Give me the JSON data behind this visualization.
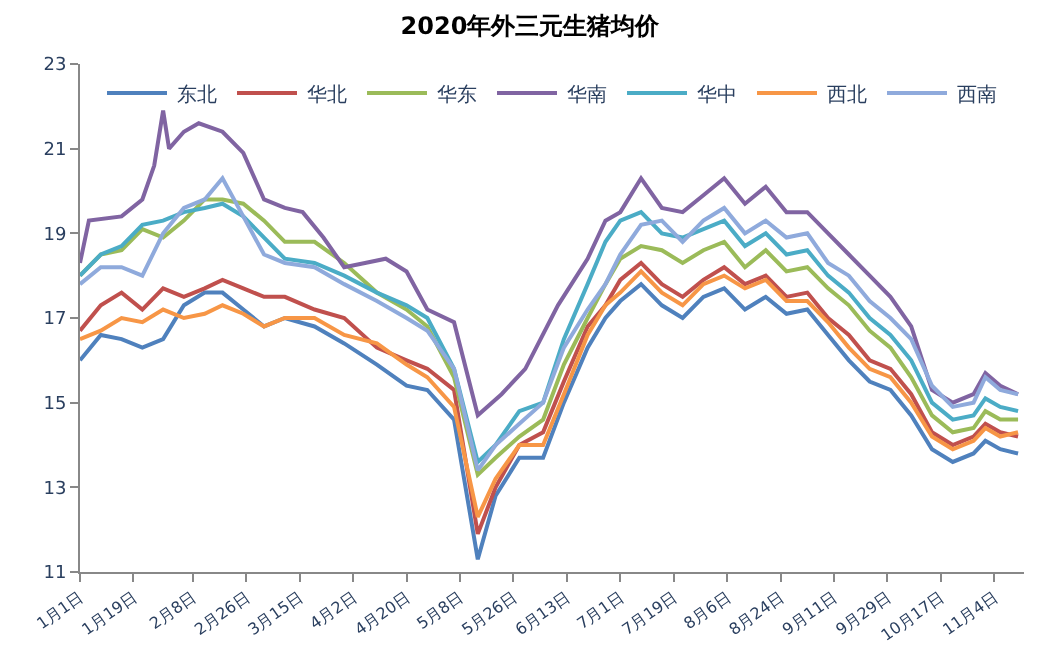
{
  "chart_data": {
    "type": "line",
    "title": "2020年外三元生猪均价",
    "x": [
      "--01-01",
      "--01-08",
      "--01-15",
      "--01-22",
      "--01-29",
      "--02-05",
      "--02-12",
      "--02-18",
      "--02-25",
      "--03-03",
      "--03-10",
      "--03-20",
      "--03-30",
      "--04-10",
      "--04-20",
      "--04-27",
      "--05-06",
      "--05-14",
      "--05-20",
      "--05-28",
      "--06-05",
      "--06-12",
      "--06-20",
      "--06-26",
      "--07-01",
      "--07-08",
      "--07-15",
      "--07-22",
      "--07-29",
      "--08-05",
      "--08-12",
      "--08-19",
      "--08-26",
      "--09-02",
      "--09-09",
      "--09-16",
      "--09-23",
      "--09-30",
      "--10-07",
      "--10-14",
      "--10-21",
      "--10-28",
      "--11-01",
      "--11-06",
      "--11-12"
    ],
    "series": [
      {
        "name": "东北",
        "color": "#4f81bd",
        "values": [
          16.0,
          16.6,
          16.5,
          16.3,
          16.5,
          17.3,
          17.6,
          17.6,
          17.2,
          16.8,
          17.0,
          16.8,
          16.4,
          15.9,
          15.4,
          15.3,
          14.6,
          11.3,
          12.8,
          13.7,
          13.7,
          15.0,
          16.3,
          17.0,
          17.4,
          17.8,
          17.3,
          17.0,
          17.5,
          17.7,
          17.2,
          17.5,
          17.1,
          17.2,
          16.6,
          16.0,
          15.5,
          15.3,
          14.7,
          13.9,
          13.6,
          13.8,
          14.1,
          13.9,
          13.8
        ]
      },
      {
        "name": "华北",
        "color": "#c0504d",
        "values": [
          16.7,
          17.3,
          17.6,
          17.2,
          17.7,
          17.5,
          17.7,
          17.9,
          17.7,
          17.5,
          17.5,
          17.2,
          17.0,
          16.3,
          16.0,
          15.8,
          15.3,
          11.9,
          13.0,
          14.0,
          14.3,
          15.5,
          16.8,
          17.3,
          17.9,
          18.3,
          17.8,
          17.5,
          17.9,
          18.2,
          17.8,
          18.0,
          17.5,
          17.6,
          17.0,
          16.6,
          16.0,
          15.8,
          15.2,
          14.3,
          14.0,
          14.2,
          14.5,
          14.3,
          14.2
        ]
      },
      {
        "name": "华东",
        "color": "#9bbb59",
        "values": [
          18.0,
          18.5,
          18.6,
          19.1,
          18.9,
          19.3,
          19.8,
          19.8,
          19.7,
          19.3,
          18.8,
          18.8,
          18.3,
          17.6,
          17.2,
          16.8,
          15.6,
          13.3,
          13.7,
          14.2,
          14.6,
          15.9,
          17.0,
          17.8,
          18.4,
          18.7,
          18.6,
          18.3,
          18.6,
          18.8,
          18.2,
          18.6,
          18.1,
          18.2,
          17.7,
          17.3,
          16.7,
          16.3,
          15.6,
          14.7,
          14.3,
          14.4,
          14.8,
          14.6,
          14.6
        ]
      },
      {
        "name": "华南",
        "color": "#8064a2",
        "x": [
          "--01-01",
          "--01-04",
          "--01-15",
          "--01-22",
          "--01-26",
          "--01-29",
          "--01-31",
          "--02-05",
          "--02-10",
          "--02-18",
          "--02-25",
          "--03-03",
          "--03-10",
          "--03-16",
          "--03-23",
          "--03-30",
          "--04-06",
          "--04-13",
          "--04-20",
          "--04-27",
          "--05-06",
          "--05-14",
          "--05-22",
          "--05-30",
          "--06-10",
          "--06-20",
          "--06-26",
          "--07-01",
          "--07-08",
          "--07-15",
          "--07-22",
          "--07-29",
          "--08-05",
          "--08-12",
          "--08-19",
          "--08-26",
          "--09-02",
          "--09-09",
          "--09-16",
          "--09-23",
          "--09-30",
          "--10-07",
          "--10-14",
          "--10-21",
          "--10-28",
          "--11-01",
          "--11-06",
          "--11-12"
        ],
        "values": [
          18.3,
          19.3,
          19.4,
          19.8,
          20.6,
          21.9,
          21.0,
          21.4,
          21.6,
          21.4,
          20.9,
          19.8,
          19.6,
          19.5,
          18.9,
          18.2,
          18.3,
          18.4,
          18.1,
          17.2,
          16.9,
          14.7,
          15.2,
          15.8,
          17.3,
          18.4,
          19.3,
          19.5,
          20.3,
          19.6,
          19.5,
          19.9,
          20.3,
          19.7,
          20.1,
          19.5,
          19.5,
          19.0,
          18.5,
          18.0,
          17.5,
          16.8,
          15.3,
          15.0,
          15.2,
          15.7,
          15.4,
          15.2
        ]
      },
      {
        "name": "华中",
        "color": "#4bacc6",
        "values": [
          18.0,
          18.5,
          18.7,
          19.2,
          19.3,
          19.5,
          19.6,
          19.7,
          19.4,
          18.9,
          18.4,
          18.3,
          18.0,
          17.6,
          17.3,
          17.0,
          15.8,
          13.6,
          14.0,
          14.8,
          15.0,
          16.5,
          17.8,
          18.8,
          19.3,
          19.5,
          19.0,
          18.9,
          19.1,
          19.3,
          18.7,
          19.0,
          18.5,
          18.6,
          18.0,
          17.6,
          17.0,
          16.6,
          16.0,
          15.0,
          14.6,
          14.7,
          15.1,
          14.9,
          14.8
        ]
      },
      {
        "name": "西北",
        "color": "#f79646",
        "values": [
          16.5,
          16.7,
          17.0,
          16.9,
          17.2,
          17.0,
          17.1,
          17.3,
          17.1,
          16.8,
          17.0,
          17.0,
          16.6,
          16.4,
          15.9,
          15.6,
          14.9,
          12.3,
          13.2,
          14.0,
          14.0,
          15.2,
          16.6,
          17.3,
          17.6,
          18.1,
          17.6,
          17.3,
          17.8,
          18.0,
          17.7,
          17.9,
          17.4,
          17.4,
          16.9,
          16.3,
          15.8,
          15.6,
          15.0,
          14.2,
          13.9,
          14.1,
          14.4,
          14.2,
          14.3
        ]
      },
      {
        "name": "西南",
        "color": "#8faadc",
        "values": [
          17.8,
          18.2,
          18.2,
          18.0,
          19.0,
          19.6,
          19.8,
          20.3,
          19.4,
          18.5,
          18.3,
          18.2,
          17.8,
          17.4,
          17.0,
          16.7,
          15.8,
          13.4,
          14.0,
          14.5,
          15.0,
          16.3,
          17.2,
          17.8,
          18.5,
          19.2,
          19.3,
          18.8,
          19.3,
          19.6,
          19.0,
          19.3,
          18.9,
          19.0,
          18.3,
          18.0,
          17.4,
          17.0,
          16.5,
          15.4,
          14.9,
          15.0,
          15.6,
          15.3,
          15.2
        ]
      }
    ],
    "xlim": [
      "--01-01",
      "--11-14"
    ],
    "xticks": [
      {
        "value": "--01-01",
        "label": "1月1日"
      },
      {
        "value": "--01-19",
        "label": "1月19日"
      },
      {
        "value": "--02-08",
        "label": "2月8日"
      },
      {
        "value": "--02-26",
        "label": "2月26日"
      },
      {
        "value": "--03-15",
        "label": "3月15日"
      },
      {
        "value": "--04-02",
        "label": "4月2日"
      },
      {
        "value": "--04-20",
        "label": "4月20日"
      },
      {
        "value": "--05-08",
        "label": "5月8日"
      },
      {
        "value": "--05-26",
        "label": "5月26日"
      },
      {
        "value": "--06-13",
        "label": "6月13日"
      },
      {
        "value": "--07-01",
        "label": "7月1日"
      },
      {
        "value": "--07-19",
        "label": "7月19日"
      },
      {
        "value": "--08-06",
        "label": "8月6日"
      },
      {
        "value": "--08-24",
        "label": "8月24日"
      },
      {
        "value": "--09-11",
        "label": "9月11日"
      },
      {
        "value": "--09-29",
        "label": "9月29日"
      },
      {
        "value": "--10-17",
        "label": "10月17日"
      },
      {
        "value": "--11-04",
        "label": "11月4日"
      }
    ],
    "ylim": [
      11,
      23
    ],
    "yticks": [
      11,
      13,
      15,
      17,
      19,
      21,
      23
    ],
    "grid": false,
    "legend": "top",
    "marker": "none",
    "line_style": "solid"
  }
}
